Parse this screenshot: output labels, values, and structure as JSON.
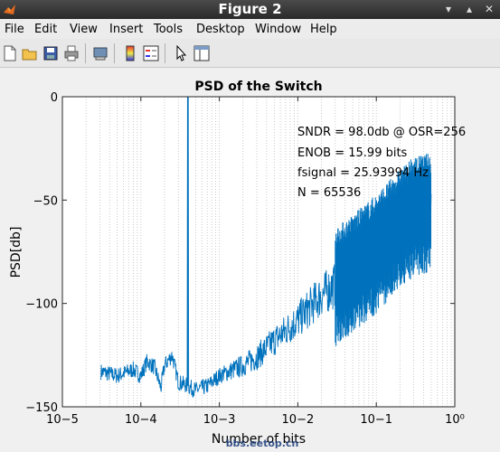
{
  "window": {
    "title": "Figure 2"
  },
  "menu": [
    "File",
    "Edit",
    "View",
    "Insert",
    "Tools",
    "Desktop",
    "Window",
    "Help"
  ],
  "toolbar": [
    "new-figure",
    "open-file",
    "save",
    "print",
    "print-preview",
    "insert-colorbar",
    "insert-legend",
    "edit-plot",
    "property-editor"
  ],
  "watermark": "bbs.eetop.cn",
  "chart_data": {
    "type": "line",
    "title": "PSD of the Switch",
    "xlabel": "Number of bits",
    "ylabel": "PSD[db]",
    "xscale": "log",
    "xlim": [
      1e-05,
      1
    ],
    "ylim": [
      -150,
      0
    ],
    "xticks": [
      "10−5",
      "10−4",
      "10−3",
      "10−2",
      "10−1",
      "10⁰"
    ],
    "yticks": [
      "0",
      "−50",
      "−100",
      "−150"
    ],
    "grid": "x-minor",
    "series": [
      {
        "color": "#0072bd",
        "signal_peak": {
          "x": 0.000396,
          "y": 0
        },
        "points": [
          [
            3.1e-05,
            -133
          ],
          [
            5e-05,
            -135
          ],
          [
            8e-05,
            -132
          ],
          [
            0.0001,
            -135
          ],
          [
            0.00012,
            -128
          ],
          [
            0.00015,
            -131
          ],
          [
            0.00018,
            -141
          ],
          [
            0.0002,
            -130
          ],
          [
            0.00025,
            -125
          ],
          [
            0.0003,
            -138
          ],
          [
            0.0004,
            -140
          ],
          [
            0.0005,
            -142
          ],
          [
            0.0007,
            -140
          ],
          [
            0.001,
            -135
          ],
          [
            0.002,
            -130
          ],
          [
            0.003,
            -126
          ],
          [
            0.005,
            -118
          ],
          [
            0.01,
            -108
          ],
          [
            0.02,
            -96
          ],
          [
            0.05,
            -85
          ],
          [
            0.1,
            -75
          ],
          [
            0.2,
            -63
          ],
          [
            0.3,
            -57
          ],
          [
            0.5,
            -55
          ]
        ]
      }
    ],
    "annotations": [
      "SNDR = 98.0db @ OSR=256",
      "ENOB = 15.99 bits",
      "fsignal = 25.93994 Hz",
      "N = 65536"
    ]
  }
}
